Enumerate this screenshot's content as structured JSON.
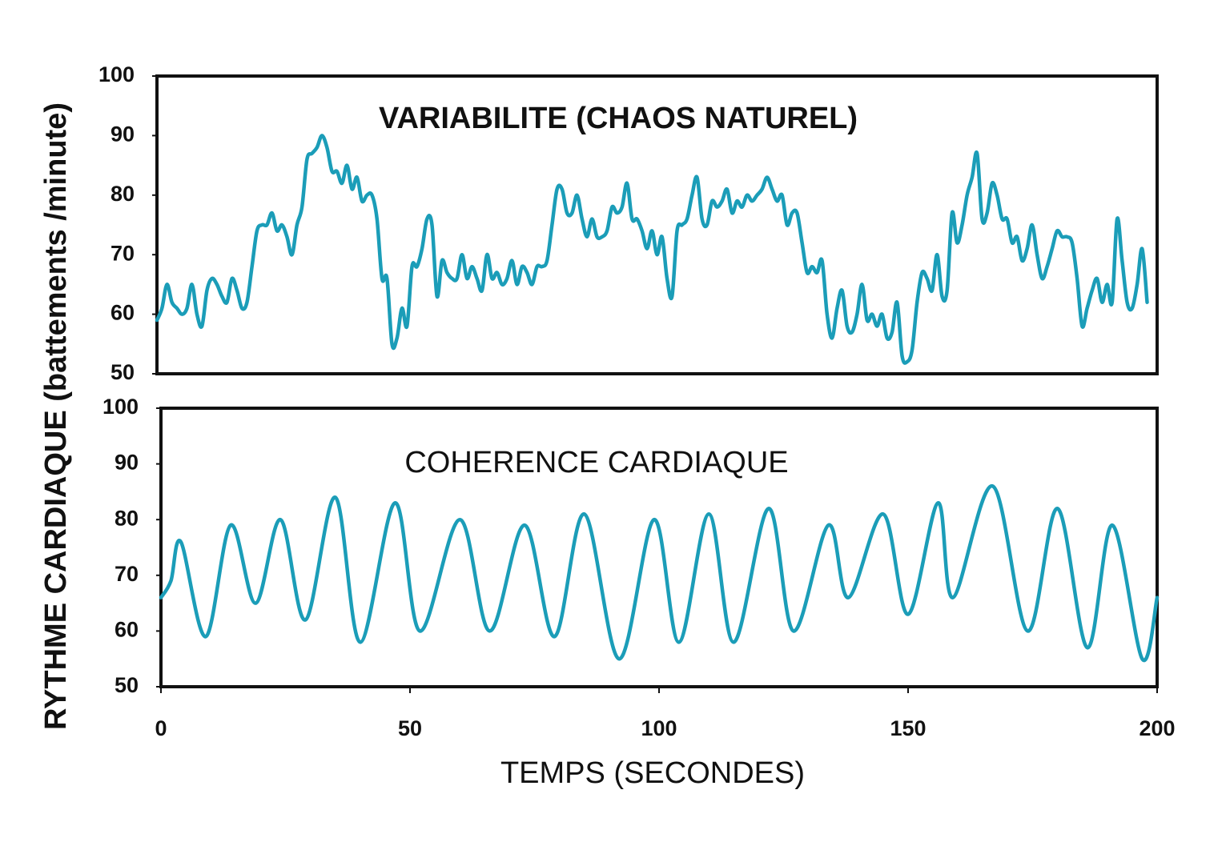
{
  "chart_data": [
    {
      "type": "line",
      "title": "VARIABILITE (CHAOS NATUREL)",
      "ylabel": "RYTHME CARDIAQUE (battements /minute)",
      "x": [
        0,
        1,
        2,
        3,
        4,
        5,
        6,
        7,
        8,
        9,
        10,
        11,
        12,
        13,
        14,
        15,
        16,
        17,
        18,
        19,
        20,
        21,
        22,
        23,
        24,
        25,
        26,
        27,
        28,
        29,
        30,
        31,
        32,
        33,
        34,
        35,
        36,
        37,
        38,
        39,
        40,
        41,
        42,
        43,
        44,
        45,
        46,
        47,
        48,
        49,
        50,
        51,
        52,
        53,
        54,
        55,
        56,
        57,
        58,
        59,
        60,
        61,
        62,
        63,
        64,
        65,
        66,
        67,
        68,
        69,
        70,
        71,
        72,
        73,
        74,
        75,
        76,
        77,
        78,
        79,
        80,
        81,
        82,
        83,
        84,
        85,
        86,
        87,
        88,
        89,
        90,
        91,
        92,
        93,
        94,
        95,
        96,
        97,
        98,
        99,
        100,
        101,
        102,
        103,
        104,
        105,
        106,
        107,
        108,
        109,
        110,
        111,
        112,
        113,
        114,
        115,
        116,
        117,
        118,
        119,
        120,
        121,
        122,
        123,
        124,
        125,
        126,
        127,
        128,
        129,
        130,
        131,
        132,
        133,
        134,
        135,
        136,
        137,
        138,
        139,
        140,
        141,
        142,
        143,
        144,
        145,
        146,
        147,
        148,
        149,
        150,
        151,
        152,
        153,
        154,
        155,
        156,
        157,
        158,
        159,
        160,
        161,
        162,
        163,
        164,
        165,
        166,
        167,
        168,
        169,
        170,
        171,
        172,
        173,
        174,
        175,
        176,
        177,
        178,
        179,
        180,
        181,
        182,
        183,
        184,
        185,
        186,
        187,
        188,
        189,
        190,
        191,
        192,
        193,
        194,
        195,
        196,
        197,
        198
      ],
      "series": [
        {
          "color": "#1b9db8",
          "values": [
            59,
            61,
            65,
            62,
            61,
            60,
            61,
            65,
            60,
            58,
            64,
            66,
            65,
            63,
            62,
            66,
            64,
            61,
            62,
            68,
            74,
            75,
            75,
            77,
            74,
            75,
            73,
            70,
            75,
            78,
            86,
            87,
            88,
            90,
            88,
            84,
            84,
            82,
            85,
            81,
            83,
            79,
            80,
            80,
            76,
            66,
            66,
            55,
            56,
            61,
            58,
            68,
            68,
            71,
            76,
            75,
            63,
            69,
            67,
            66,
            66,
            70,
            66,
            68,
            66,
            64,
            70,
            66,
            67,
            65,
            66,
            69,
            65,
            68,
            67,
            65,
            68,
            68,
            69,
            75,
            81,
            81,
            77,
            77,
            80,
            76,
            73,
            76,
            73,
            73,
            74,
            78,
            77,
            78,
            82,
            76,
            76,
            74,
            71,
            74,
            70,
            73,
            66,
            63,
            74,
            75,
            76,
            80,
            83,
            76,
            75,
            79,
            78,
            79,
            81,
            77,
            79,
            78,
            80,
            79,
            80,
            81,
            83,
            81,
            79,
            80,
            75,
            77,
            77,
            72,
            67,
            68,
            67,
            69,
            60,
            56,
            61,
            64,
            58,
            57,
            60,
            65,
            59,
            60,
            58,
            60,
            56,
            57,
            62,
            53,
            52,
            54,
            62,
            67,
            66,
            64,
            70,
            63,
            64,
            77,
            72,
            75,
            80,
            83,
            87,
            76,
            77,
            82,
            80,
            76,
            76,
            72,
            73,
            69,
            71,
            75,
            70,
            66,
            68,
            71,
            74,
            73,
            73,
            72,
            66,
            58,
            61,
            64,
            66,
            62,
            65,
            62,
            76,
            69,
            62,
            61,
            65,
            71,
            62
          ]
        }
      ],
      "xlim": [
        0,
        200
      ],
      "ylim": [
        50,
        100
      ],
      "yticks": [
        50,
        60,
        70,
        80,
        90,
        100
      ]
    },
    {
      "type": "line",
      "title": "COHERENCE CARDIAQUE",
      "xlabel": "TEMPS (SECONDES)",
      "x": [
        0,
        2,
        4,
        9,
        14,
        19,
        24,
        29,
        35,
        40,
        47,
        52,
        60,
        66,
        73,
        79,
        85,
        92,
        99,
        104,
        110,
        115,
        122,
        127,
        134,
        138,
        145,
        150,
        156,
        159,
        167,
        174,
        180,
        186,
        191,
        197,
        200
      ],
      "series": [
        {
          "color": "#1b9db8",
          "values": [
            66,
            69,
            76,
            59,
            79,
            65,
            80,
            62,
            84,
            58,
            83,
            60,
            80,
            60,
            79,
            59,
            81,
            55,
            80,
            58,
            81,
            58,
            82,
            60,
            79,
            66,
            81,
            63,
            83,
            66,
            86,
            60,
            82,
            57,
            79,
            55,
            66
          ]
        }
      ],
      "xlim": [
        0,
        200
      ],
      "ylim": [
        50,
        100
      ],
      "yticks": [
        50,
        60,
        70,
        80,
        90,
        100
      ],
      "xticks": [
        0,
        50,
        100,
        150,
        200
      ]
    }
  ]
}
